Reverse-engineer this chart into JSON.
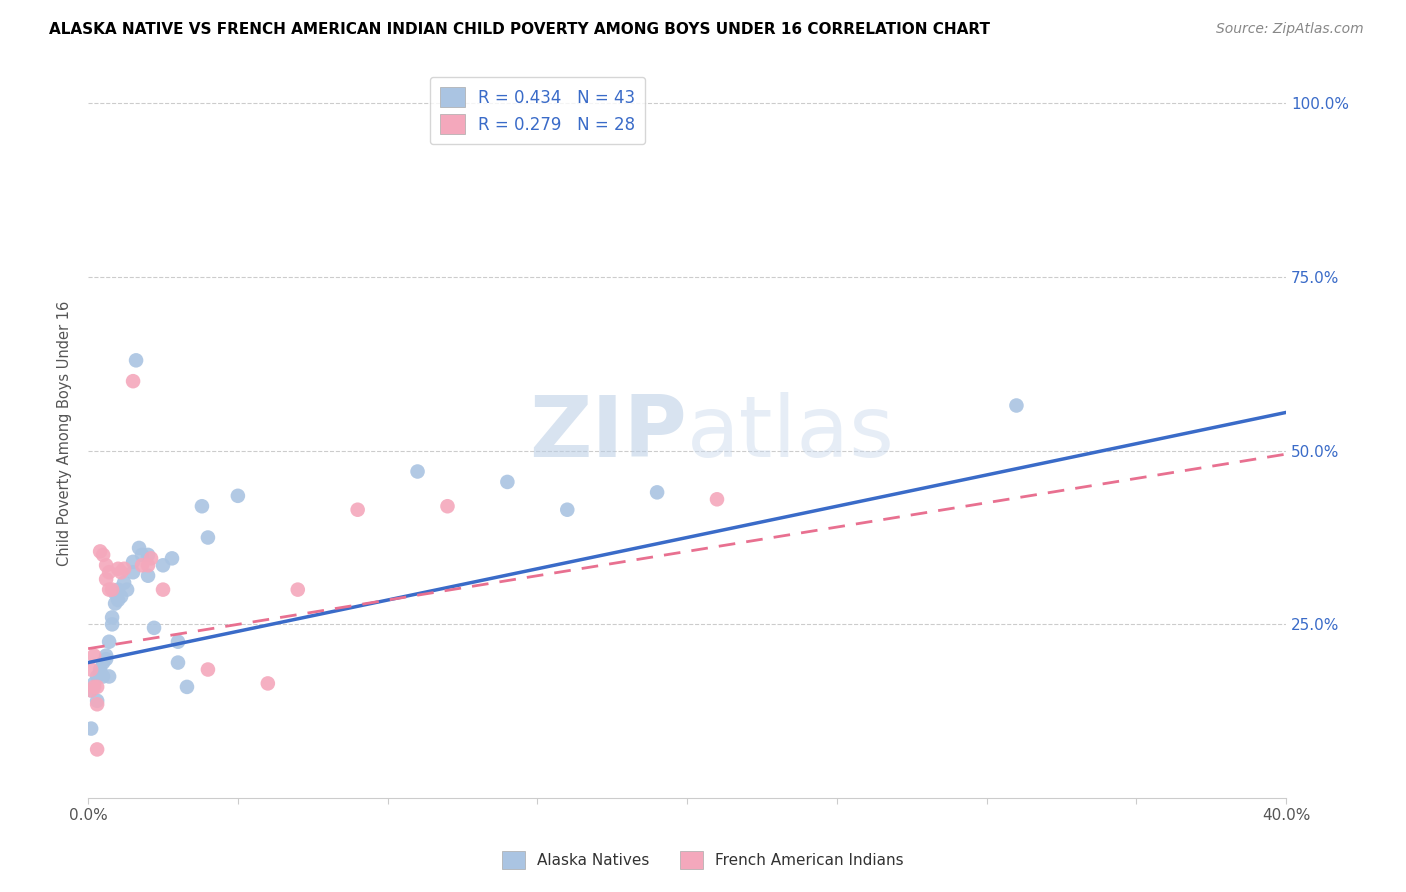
{
  "title": "ALASKA NATIVE VS FRENCH AMERICAN INDIAN CHILD POVERTY AMONG BOYS UNDER 16 CORRELATION CHART",
  "source": "Source: ZipAtlas.com",
  "ylabel": "Child Poverty Among Boys Under 16",
  "xlim": [
    0.0,
    0.4
  ],
  "ylim": [
    0.0,
    1.05
  ],
  "alaska_R": 0.434,
  "alaska_N": 43,
  "french_R": 0.279,
  "french_N": 28,
  "alaska_color": "#aac4e2",
  "french_color": "#f4a8bc",
  "alaska_line_color": "#3a6bc8",
  "french_line_color": "#e87090",
  "watermark": "ZIPatlas",
  "alaska_line": [
    0.0,
    0.195,
    0.4,
    0.555
  ],
  "french_line": [
    0.0,
    0.215,
    0.4,
    0.495
  ],
  "alaska_points": [
    [
      0.001,
      0.1
    ],
    [
      0.001,
      0.155
    ],
    [
      0.002,
      0.165
    ],
    [
      0.003,
      0.175
    ],
    [
      0.003,
      0.14
    ],
    [
      0.004,
      0.185
    ],
    [
      0.004,
      0.18
    ],
    [
      0.005,
      0.195
    ],
    [
      0.005,
      0.175
    ],
    [
      0.006,
      0.2
    ],
    [
      0.006,
      0.205
    ],
    [
      0.007,
      0.175
    ],
    [
      0.007,
      0.225
    ],
    [
      0.008,
      0.26
    ],
    [
      0.008,
      0.25
    ],
    [
      0.009,
      0.28
    ],
    [
      0.009,
      0.295
    ],
    [
      0.01,
      0.285
    ],
    [
      0.01,
      0.3
    ],
    [
      0.011,
      0.29
    ],
    [
      0.012,
      0.31
    ],
    [
      0.013,
      0.3
    ],
    [
      0.015,
      0.325
    ],
    [
      0.015,
      0.34
    ],
    [
      0.016,
      0.63
    ],
    [
      0.017,
      0.36
    ],
    [
      0.018,
      0.35
    ],
    [
      0.02,
      0.35
    ],
    [
      0.02,
      0.32
    ],
    [
      0.022,
      0.245
    ],
    [
      0.025,
      0.335
    ],
    [
      0.028,
      0.345
    ],
    [
      0.03,
      0.225
    ],
    [
      0.03,
      0.195
    ],
    [
      0.033,
      0.16
    ],
    [
      0.038,
      0.42
    ],
    [
      0.04,
      0.375
    ],
    [
      0.05,
      0.435
    ],
    [
      0.11,
      0.47
    ],
    [
      0.14,
      0.455
    ],
    [
      0.16,
      0.415
    ],
    [
      0.19,
      0.44
    ],
    [
      0.31,
      0.565
    ]
  ],
  "french_points": [
    [
      0.001,
      0.155
    ],
    [
      0.001,
      0.185
    ],
    [
      0.002,
      0.16
    ],
    [
      0.002,
      0.205
    ],
    [
      0.003,
      0.16
    ],
    [
      0.003,
      0.135
    ],
    [
      0.003,
      0.07
    ],
    [
      0.004,
      0.355
    ],
    [
      0.005,
      0.35
    ],
    [
      0.006,
      0.335
    ],
    [
      0.006,
      0.315
    ],
    [
      0.007,
      0.3
    ],
    [
      0.007,
      0.325
    ],
    [
      0.008,
      0.3
    ],
    [
      0.01,
      0.33
    ],
    [
      0.011,
      0.325
    ],
    [
      0.012,
      0.33
    ],
    [
      0.015,
      0.6
    ],
    [
      0.018,
      0.335
    ],
    [
      0.02,
      0.335
    ],
    [
      0.021,
      0.345
    ],
    [
      0.025,
      0.3
    ],
    [
      0.04,
      0.185
    ],
    [
      0.06,
      0.165
    ],
    [
      0.07,
      0.3
    ],
    [
      0.09,
      0.415
    ],
    [
      0.12,
      0.42
    ],
    [
      0.21,
      0.43
    ]
  ]
}
